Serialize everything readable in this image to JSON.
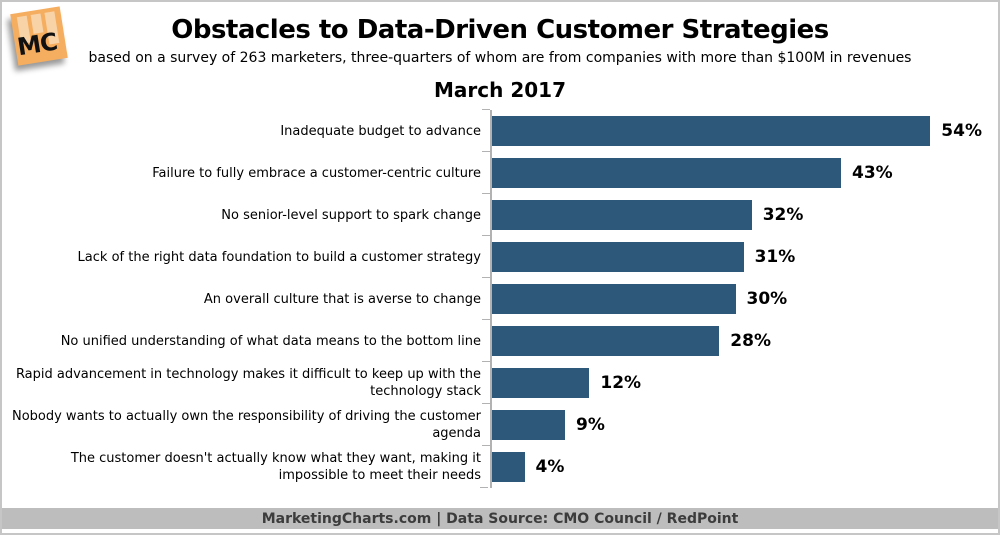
{
  "header": {
    "logo_text": "MC"
  },
  "chart_data": {
    "type": "bar",
    "orientation": "horizontal",
    "title": "Obstacles to Data-Driven Customer Strategies",
    "subtitle": "based on a survey of 263 marketers, three-quarters of whom are from companies with more than $100M in revenues",
    "period_label": "March 2017",
    "categories": [
      "Inadequate budget to advance",
      "Failure to fully embrace a customer-centric culture",
      "No senior-level support to spark change",
      "Lack of the right data foundation to build a customer strategy",
      "An overall culture that is averse to change",
      "No unified understanding of what data means to the bottom line",
      "Rapid advancement in technology makes it difficult to keep up with the technology stack",
      "Nobody wants to actually own the responsibility of driving the customer agenda",
      "The customer doesn't actually know what they want, making it impossible to meet their needs"
    ],
    "values": [
      54,
      43,
      32,
      31,
      30,
      28,
      12,
      9,
      4
    ],
    "unit": "%",
    "xlim": [
      0,
      60
    ],
    "grid": false,
    "legend": "none",
    "bar_color": "#2d587a",
    "axis_color": "#b2b2b2"
  },
  "footer": {
    "text": "MarketingCharts.com | Data Source: CMO Council / RedPoint"
  }
}
